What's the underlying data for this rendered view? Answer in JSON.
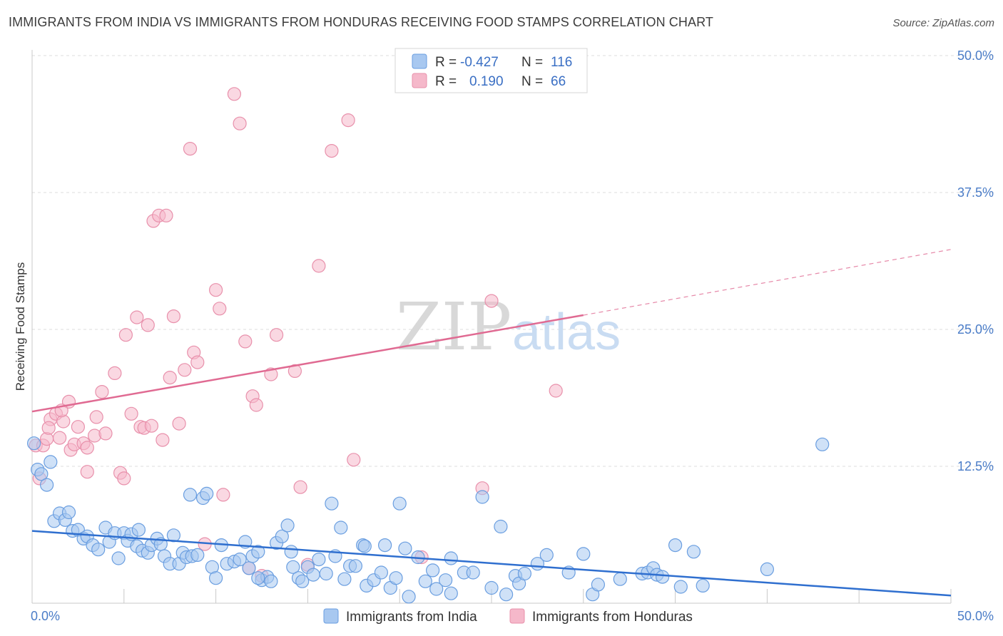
{
  "title": "IMMIGRANTS FROM INDIA VS IMMIGRANTS FROM HONDURAS RECEIVING FOOD STAMPS CORRELATION CHART",
  "source": "Source: ZipAtlas.com",
  "watermark": {
    "zip": "ZIP",
    "atlas": "atlas"
  },
  "legend": {
    "r_label": "R =",
    "n_label": "N =",
    "india": {
      "r": "-0.427",
      "n": "116"
    },
    "honduras": {
      "r": "0.190",
      "n": "66"
    }
  },
  "bottom_legend": {
    "india": "Immigrants from India",
    "honduras": "Immigrants from Honduras"
  },
  "colors": {
    "india_fill": "#a8c8f0",
    "india_stroke": "#6a9ee0",
    "india_line": "#2f6fcf",
    "honduras_fill": "#f5b8ca",
    "honduras_stroke": "#e890ab",
    "honduras_line": "#e06a92"
  },
  "chart_data": {
    "type": "scatter",
    "title": "IMMIGRANTS FROM INDIA VS IMMIGRANTS FROM HONDURAS RECEIVING FOOD STAMPS CORRELATION CHART",
    "xlabel": "",
    "ylabel": "Receiving Food Stamps",
    "xlim": [
      0,
      50
    ],
    "ylim": [
      0,
      50
    ],
    "x_tick_labels": [
      "0.0%",
      "50.0%"
    ],
    "y_tick_labels": [
      "12.5%",
      "25.0%",
      "37.5%",
      "50.0%"
    ],
    "y_ticks": [
      12.5,
      25.0,
      37.5,
      50.0
    ],
    "grid": true,
    "legend_position": "top-center",
    "series": [
      {
        "name": "Immigrants from India",
        "trend": {
          "x": [
            0,
            50
          ],
          "y": [
            6.6,
            0.7
          ]
        },
        "points": [
          [
            0.1,
            14.6
          ],
          [
            0.3,
            12.2
          ],
          [
            0.5,
            11.8
          ],
          [
            0.8,
            10.8
          ],
          [
            1.0,
            12.9
          ],
          [
            1.2,
            7.5
          ],
          [
            1.5,
            8.2
          ],
          [
            1.8,
            7.6
          ],
          [
            2.0,
            8.3
          ],
          [
            2.2,
            6.6
          ],
          [
            2.5,
            6.7
          ],
          [
            2.8,
            5.9
          ],
          [
            3.0,
            6.1
          ],
          [
            3.3,
            5.3
          ],
          [
            3.6,
            4.9
          ],
          [
            4.0,
            6.9
          ],
          [
            4.2,
            5.6
          ],
          [
            4.5,
            6.4
          ],
          [
            4.7,
            4.1
          ],
          [
            5.0,
            6.4
          ],
          [
            5.2,
            5.7
          ],
          [
            5.4,
            6.3
          ],
          [
            5.7,
            5.2
          ],
          [
            5.8,
            6.7
          ],
          [
            6.0,
            4.8
          ],
          [
            6.3,
            4.6
          ],
          [
            6.5,
            5.3
          ],
          [
            6.8,
            5.9
          ],
          [
            7.0,
            5.4
          ],
          [
            7.2,
            4.3
          ],
          [
            7.5,
            3.6
          ],
          [
            7.7,
            6.2
          ],
          [
            8.0,
            3.6
          ],
          [
            8.2,
            4.6
          ],
          [
            8.4,
            4.2
          ],
          [
            8.7,
            4.3
          ],
          [
            9.0,
            4.4
          ],
          [
            9.3,
            9.6
          ],
          [
            9.5,
            10.0
          ],
          [
            9.8,
            3.3
          ],
          [
            10.0,
            2.3
          ],
          [
            10.3,
            5.3
          ],
          [
            10.6,
            3.6
          ],
          [
            11.0,
            3.8
          ],
          [
            11.3,
            4.0
          ],
          [
            11.6,
            5.6
          ],
          [
            11.8,
            3.2
          ],
          [
            12.0,
            4.3
          ],
          [
            12.3,
            4.7
          ],
          [
            12.5,
            2.1
          ],
          [
            12.8,
            2.4
          ],
          [
            13.0,
            2.0
          ],
          [
            13.3,
            5.5
          ],
          [
            13.6,
            6.1
          ],
          [
            13.9,
            7.1
          ],
          [
            14.2,
            3.3
          ],
          [
            14.5,
            2.3
          ],
          [
            14.7,
            2.0
          ],
          [
            15.0,
            3.3
          ],
          [
            15.3,
            2.6
          ],
          [
            15.6,
            4.0
          ],
          [
            16.0,
            2.7
          ],
          [
            16.3,
            9.1
          ],
          [
            16.5,
            4.3
          ],
          [
            16.8,
            6.9
          ],
          [
            17.0,
            2.2
          ],
          [
            17.3,
            3.4
          ],
          [
            17.6,
            3.4
          ],
          [
            18.0,
            5.3
          ],
          [
            18.2,
            1.6
          ],
          [
            18.6,
            2.1
          ],
          [
            19.0,
            2.8
          ],
          [
            19.2,
            5.3
          ],
          [
            19.5,
            1.4
          ],
          [
            19.8,
            2.3
          ],
          [
            20.0,
            9.1
          ],
          [
            20.3,
            5.0
          ],
          [
            20.5,
            0.6
          ],
          [
            21.0,
            4.2
          ],
          [
            21.4,
            2.0
          ],
          [
            21.8,
            3.0
          ],
          [
            22.0,
            1.3
          ],
          [
            22.5,
            2.1
          ],
          [
            22.8,
            4.1
          ],
          [
            23.5,
            2.8
          ],
          [
            24.0,
            2.8
          ],
          [
            24.5,
            9.7
          ],
          [
            25.0,
            1.4
          ],
          [
            25.5,
            7.0
          ],
          [
            25.8,
            0.8
          ],
          [
            26.3,
            2.5
          ],
          [
            26.5,
            1.8
          ],
          [
            26.8,
            2.7
          ],
          [
            27.5,
            3.6
          ],
          [
            28.0,
            4.4
          ],
          [
            29.2,
            2.8
          ],
          [
            30.0,
            4.5
          ],
          [
            30.5,
            0.8
          ],
          [
            30.8,
            1.7
          ],
          [
            32.0,
            2.2
          ],
          [
            33.2,
            2.7
          ],
          [
            33.5,
            2.8
          ],
          [
            33.8,
            3.2
          ],
          [
            34.0,
            2.6
          ],
          [
            34.3,
            2.4
          ],
          [
            35.0,
            5.3
          ],
          [
            35.3,
            1.5
          ],
          [
            36.0,
            4.7
          ],
          [
            36.5,
            1.6
          ],
          [
            40.0,
            3.1
          ],
          [
            43.0,
            14.5
          ],
          [
            8.6,
            9.9
          ],
          [
            14.1,
            4.7
          ],
          [
            18.1,
            5.2
          ],
          [
            22.8,
            0.9
          ],
          [
            12.3,
            2.3
          ]
        ]
      },
      {
        "name": "Immigrants from Honduras",
        "trend": {
          "x": [
            0,
            30
          ],
          "y": [
            17.5,
            26.3
          ]
        },
        "trend_dashed": {
          "x": [
            30,
            50
          ],
          "y": [
            26.3,
            32.3
          ]
        },
        "points": [
          [
            0.2,
            14.4
          ],
          [
            0.4,
            11.4
          ],
          [
            0.6,
            14.4
          ],
          [
            0.8,
            15.0
          ],
          [
            1.0,
            16.8
          ],
          [
            1.3,
            17.3
          ],
          [
            1.5,
            15.1
          ],
          [
            1.7,
            16.6
          ],
          [
            2.0,
            18.4
          ],
          [
            2.1,
            14.0
          ],
          [
            2.3,
            14.5
          ],
          [
            2.5,
            16.1
          ],
          [
            2.8,
            14.6
          ],
          [
            3.0,
            12.0
          ],
          [
            3.0,
            14.2
          ],
          [
            3.4,
            15.3
          ],
          [
            3.5,
            17.0
          ],
          [
            3.8,
            19.3
          ],
          [
            4.0,
            15.5
          ],
          [
            4.5,
            21.0
          ],
          [
            4.8,
            11.9
          ],
          [
            5.0,
            11.4
          ],
          [
            5.1,
            24.5
          ],
          [
            5.4,
            17.3
          ],
          [
            5.7,
            26.1
          ],
          [
            5.9,
            16.1
          ],
          [
            6.1,
            16.0
          ],
          [
            6.3,
            25.4
          ],
          [
            6.5,
            16.2
          ],
          [
            6.6,
            34.9
          ],
          [
            6.9,
            35.4
          ],
          [
            7.1,
            14.9
          ],
          [
            7.3,
            35.4
          ],
          [
            7.5,
            20.6
          ],
          [
            7.7,
            26.2
          ],
          [
            8.0,
            16.4
          ],
          [
            8.3,
            21.3
          ],
          [
            8.6,
            41.5
          ],
          [
            8.8,
            22.9
          ],
          [
            9.0,
            22.0
          ],
          [
            9.4,
            5.4
          ],
          [
            10.0,
            28.6
          ],
          [
            10.2,
            26.9
          ],
          [
            10.4,
            9.9
          ],
          [
            11.0,
            46.5
          ],
          [
            11.3,
            43.8
          ],
          [
            11.6,
            23.9
          ],
          [
            11.8,
            3.2
          ],
          [
            12.0,
            18.9
          ],
          [
            12.2,
            18.1
          ],
          [
            12.5,
            2.5
          ],
          [
            13.0,
            20.9
          ],
          [
            13.3,
            24.5
          ],
          [
            14.3,
            21.2
          ],
          [
            14.6,
            10.6
          ],
          [
            15.0,
            3.5
          ],
          [
            15.6,
            30.8
          ],
          [
            16.3,
            41.3
          ],
          [
            17.2,
            44.1
          ],
          [
            17.5,
            13.1
          ],
          [
            21.2,
            4.2
          ],
          [
            24.5,
            10.5
          ],
          [
            25.0,
            27.6
          ],
          [
            28.5,
            19.4
          ],
          [
            1.6,
            17.6
          ],
          [
            0.9,
            16.0
          ]
        ]
      }
    ]
  }
}
